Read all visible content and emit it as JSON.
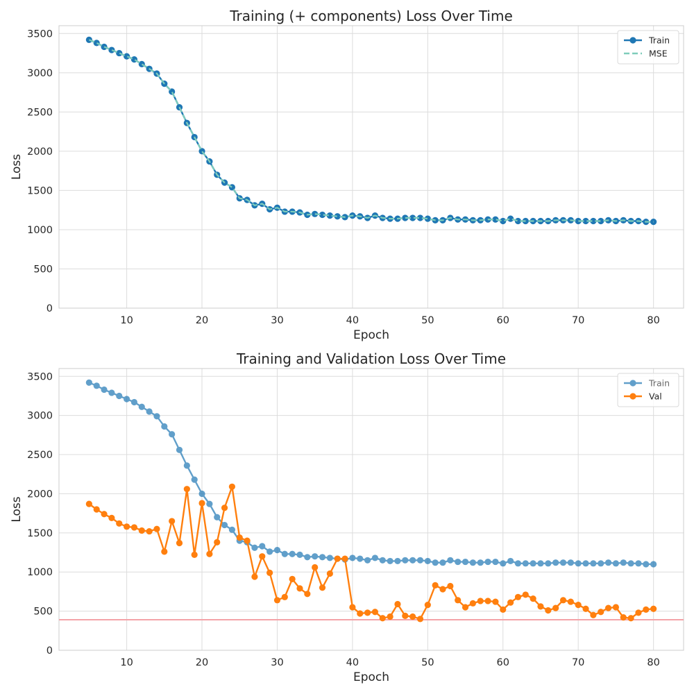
{
  "chart_data": [
    {
      "type": "line",
      "title": "Training (+ components) Loss Over Time",
      "xlabel": "Epoch",
      "ylabel": "Loss",
      "xlim": [
        1,
        84
      ],
      "ylim": [
        0,
        3600
      ],
      "xticks": [
        10,
        20,
        30,
        40,
        50,
        60,
        70,
        80
      ],
      "yticks": [
        0,
        500,
        1000,
        1500,
        2000,
        2500,
        3000,
        3500
      ],
      "grid": true,
      "legend_position": "top-right",
      "x": [
        5,
        6,
        7,
        8,
        9,
        10,
        11,
        12,
        13,
        14,
        15,
        16,
        17,
        18,
        19,
        20,
        21,
        22,
        23,
        24,
        25,
        26,
        27,
        28,
        29,
        30,
        31,
        32,
        33,
        34,
        35,
        36,
        37,
        38,
        39,
        40,
        41,
        42,
        43,
        44,
        45,
        46,
        47,
        48,
        49,
        50,
        51,
        52,
        53,
        54,
        55,
        56,
        57,
        58,
        59,
        60,
        61,
        62,
        63,
        64,
        65,
        66,
        67,
        68,
        69,
        70,
        71,
        72,
        73,
        74,
        75,
        76,
        77,
        78,
        79,
        80
      ],
      "series": [
        {
          "name": "Train",
          "color": "#1f77b4",
          "style": "solid",
          "marker": "circle",
          "values": [
            3420,
            3380,
            3330,
            3290,
            3250,
            3210,
            3170,
            3110,
            3050,
            2990,
            2860,
            2760,
            2560,
            2360,
            2180,
            2000,
            1870,
            1700,
            1600,
            1540,
            1400,
            1380,
            1310,
            1330,
            1260,
            1280,
            1230,
            1230,
            1220,
            1190,
            1200,
            1190,
            1180,
            1170,
            1160,
            1180,
            1170,
            1150,
            1180,
            1150,
            1140,
            1140,
            1150,
            1150,
            1150,
            1140,
            1120,
            1120,
            1150,
            1130,
            1130,
            1120,
            1120,
            1130,
            1130,
            1110,
            1140,
            1110,
            1110,
            1110,
            1110,
            1110,
            1120,
            1120,
            1120,
            1110,
            1110,
            1110,
            1110,
            1120,
            1110,
            1120,
            1110,
            1110,
            1100,
            1100
          ]
        },
        {
          "name": "MSE",
          "color": "#7fcdbb",
          "style": "dashed",
          "marker": "none",
          "values": [
            3420,
            3380,
            3330,
            3290,
            3250,
            3210,
            3170,
            3110,
            3050,
            2990,
            2860,
            2760,
            2560,
            2360,
            2180,
            2000,
            1870,
            1700,
            1600,
            1540,
            1400,
            1380,
            1310,
            1330,
            1260,
            1280,
            1230,
            1230,
            1220,
            1190,
            1200,
            1190,
            1180,
            1170,
            1160,
            1180,
            1170,
            1150,
            1180,
            1150,
            1140,
            1140,
            1150,
            1150,
            1150,
            1140,
            1120,
            1120,
            1150,
            1130,
            1130,
            1120,
            1120,
            1130,
            1130,
            1110,
            1140,
            1110,
            1110,
            1110,
            1110,
            1110,
            1120,
            1120,
            1120,
            1110,
            1110,
            1110,
            1110,
            1120,
            1110,
            1120,
            1110,
            1110,
            1100,
            1100
          ]
        }
      ]
    },
    {
      "type": "line",
      "title": "Training and Validation Loss Over Time",
      "xlabel": "Epoch",
      "ylabel": "Loss",
      "xlim": [
        1,
        84
      ],
      "ylim": [
        0,
        3600
      ],
      "xticks": [
        10,
        20,
        30,
        40,
        50,
        60,
        70,
        80
      ],
      "yticks": [
        0,
        500,
        1000,
        1500,
        2000,
        2500,
        3000,
        3500
      ],
      "grid": true,
      "legend_position": "top-right",
      "hline": {
        "y": 390,
        "color": "#f4a3a8"
      },
      "x": [
        5,
        6,
        7,
        8,
        9,
        10,
        11,
        12,
        13,
        14,
        15,
        16,
        17,
        18,
        19,
        20,
        21,
        22,
        23,
        24,
        25,
        26,
        27,
        28,
        29,
        30,
        31,
        32,
        33,
        34,
        35,
        36,
        37,
        38,
        39,
        40,
        41,
        42,
        43,
        44,
        45,
        46,
        47,
        48,
        49,
        50,
        51,
        52,
        53,
        54,
        55,
        56,
        57,
        58,
        59,
        60,
        61,
        62,
        63,
        64,
        65,
        66,
        67,
        68,
        69,
        70,
        71,
        72,
        73,
        74,
        75,
        76,
        77,
        78,
        79,
        80
      ],
      "series": [
        {
          "name": "Train",
          "color": "#1f77b4",
          "opacity": 0.7,
          "style": "solid",
          "marker": "circle",
          "values": [
            3420,
            3380,
            3330,
            3290,
            3250,
            3210,
            3170,
            3110,
            3050,
            2990,
            2860,
            2760,
            2560,
            2360,
            2180,
            2000,
            1870,
            1700,
            1600,
            1540,
            1400,
            1380,
            1310,
            1330,
            1260,
            1280,
            1230,
            1230,
            1220,
            1190,
            1200,
            1190,
            1180,
            1170,
            1160,
            1180,
            1170,
            1150,
            1180,
            1150,
            1140,
            1140,
            1150,
            1150,
            1150,
            1140,
            1120,
            1120,
            1150,
            1130,
            1130,
            1120,
            1120,
            1130,
            1130,
            1110,
            1140,
            1110,
            1110,
            1110,
            1110,
            1110,
            1120,
            1120,
            1120,
            1110,
            1110,
            1110,
            1110,
            1120,
            1110,
            1120,
            1110,
            1110,
            1100,
            1100
          ]
        },
        {
          "name": "Val",
          "color": "#ff7f0e",
          "opacity": 1,
          "style": "solid",
          "marker": "circle",
          "values": [
            1870,
            1800,
            1740,
            1690,
            1620,
            1580,
            1570,
            1530,
            1520,
            1550,
            1260,
            1650,
            1370,
            2060,
            1220,
            1880,
            1230,
            1380,
            1820,
            2090,
            1440,
            1400,
            940,
            1200,
            990,
            640,
            680,
            910,
            790,
            720,
            1060,
            800,
            980,
            1170,
            1170,
            550,
            470,
            480,
            490,
            410,
            430,
            590,
            440,
            430,
            400,
            580,
            830,
            780,
            820,
            640,
            550,
            600,
            630,
            630,
            620,
            520,
            610,
            680,
            710,
            660,
            560,
            510,
            540,
            640,
            620,
            580,
            530,
            450,
            490,
            540,
            550,
            420,
            410,
            480,
            520,
            530
          ]
        }
      ]
    }
  ]
}
